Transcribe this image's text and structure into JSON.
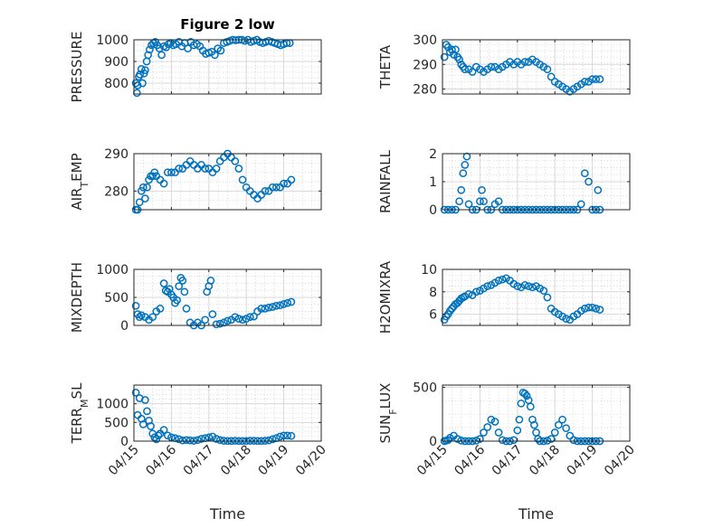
{
  "colors": {
    "marker": "#0072BD",
    "axis": "#262626",
    "grid": "#d9d9d9"
  },
  "chart_data": [
    {
      "type": "scatter",
      "title": "Figure 2 low",
      "ylabel": "PRESSURE",
      "xlabel": "",
      "xlim": [
        0,
        5
      ],
      "ylim": [
        750,
        1000
      ],
      "yticks": [
        800,
        900,
        1000
      ],
      "ytick_labels": [
        "800",
        "900",
        "1000"
      ],
      "xticks": [
        0,
        1,
        2,
        3,
        4,
        5
      ],
      "xtick_labels": [],
      "grid": true,
      "x": [
        0.05,
        0.08,
        0.1,
        0.13,
        0.16,
        0.2,
        0.23,
        0.27,
        0.3,
        0.34,
        0.38,
        0.42,
        0.47,
        0.52,
        0.57,
        0.62,
        0.68,
        0.74,
        0.8,
        0.86,
        0.92,
        0.98,
        1.05,
        1.12,
        1.2,
        1.28,
        1.36,
        1.44,
        1.52,
        1.6,
        1.68,
        1.76,
        1.84,
        1.92,
        2.0,
        2.08,
        2.16,
        2.24,
        2.32,
        2.4,
        2.48,
        2.56,
        2.64,
        2.72,
        2.8,
        2.88,
        2.96,
        3.04,
        3.12,
        3.2,
        3.28,
        3.36,
        3.44,
        3.52,
        3.6,
        3.68,
        3.76,
        3.84,
        3.92,
        4.0,
        4.08,
        4.16
      ],
      "y": [
        800,
        755,
        790,
        830,
        840,
        865,
        800,
        845,
        860,
        900,
        930,
        955,
        975,
        985,
        990,
        975,
        960,
        930,
        970,
        965,
        980,
        985,
        975,
        980,
        990,
        970,
        985,
        960,
        990,
        975,
        980,
        970,
        950,
        935,
        940,
        945,
        930,
        960,
        950,
        985,
        990,
        995,
        1000,
        998,
        1000,
        1000,
        995,
        1000,
        990,
        995,
        1000,
        990,
        985,
        990,
        995,
        990,
        985,
        980,
        975,
        980,
        985,
        985
      ]
    },
    {
      "type": "scatter",
      "title": "",
      "ylabel": "THETA",
      "xlabel": "",
      "xlim": [
        0,
        5
      ],
      "ylim": [
        278,
        300
      ],
      "yticks": [
        280,
        290,
        300
      ],
      "ytick_labels": [
        "280",
        "290",
        "300"
      ],
      "xticks": [
        0,
        1,
        2,
        3,
        4,
        5
      ],
      "xtick_labels": [],
      "grid": true,
      "x": [
        0.05,
        0.1,
        0.15,
        0.2,
        0.25,
        0.3,
        0.35,
        0.4,
        0.45,
        0.5,
        0.55,
        0.6,
        0.7,
        0.8,
        0.9,
        1.0,
        1.1,
        1.2,
        1.3,
        1.4,
        1.5,
        1.6,
        1.7,
        1.8,
        1.9,
        2.0,
        2.1,
        2.2,
        2.3,
        2.4,
        2.5,
        2.6,
        2.7,
        2.8,
        2.9,
        3.0,
        3.1,
        3.2,
        3.3,
        3.4,
        3.5,
        3.6,
        3.7,
        3.8,
        3.9,
        4.0,
        4.1,
        4.2
      ],
      "y": [
        293,
        298,
        297,
        295,
        296,
        294,
        296,
        293,
        292,
        290,
        289,
        288,
        288,
        287,
        289,
        288,
        287,
        288,
        289,
        289,
        288,
        289,
        290,
        291,
        290,
        291,
        290,
        291,
        291,
        292,
        291,
        290,
        289,
        288,
        285,
        283,
        282,
        281,
        280,
        279,
        280,
        281,
        282,
        283,
        283,
        284,
        284,
        284
      ]
    },
    {
      "type": "scatter",
      "title": "",
      "ylabel": "AIR_TEMP",
      "xlabel": "",
      "xlim": [
        0,
        5
      ],
      "ylim": [
        275,
        290
      ],
      "yticks": [
        280,
        290
      ],
      "ytick_labels": [
        "280",
        "290"
      ],
      "xticks": [
        0,
        1,
        2,
        3,
        4,
        5
      ],
      "xtick_labels": [],
      "grid": true,
      "x": [
        0.05,
        0.1,
        0.15,
        0.2,
        0.25,
        0.3,
        0.35,
        0.4,
        0.45,
        0.5,
        0.55,
        0.6,
        0.7,
        0.8,
        0.9,
        1.0,
        1.1,
        1.2,
        1.3,
        1.4,
        1.5,
        1.6,
        1.7,
        1.8,
        1.9,
        2.0,
        2.1,
        2.2,
        2.3,
        2.4,
        2.5,
        2.6,
        2.7,
        2.8,
        2.9,
        3.0,
        3.1,
        3.2,
        3.3,
        3.4,
        3.5,
        3.6,
        3.7,
        3.8,
        3.9,
        4.0,
        4.1,
        4.2
      ],
      "y": [
        275,
        275,
        277,
        280,
        281,
        278,
        281,
        283,
        284,
        284,
        285,
        284,
        283,
        282,
        285,
        285,
        285,
        286,
        286,
        287,
        288,
        287,
        286,
        287,
        286,
        286,
        285,
        286,
        288,
        289,
        290,
        289,
        288,
        286,
        283,
        281,
        280,
        279,
        278,
        279,
        280,
        280,
        281,
        281,
        281,
        282,
        282,
        283
      ]
    },
    {
      "type": "scatter",
      "title": "",
      "ylabel": "RAINFALL",
      "xlabel": "",
      "xlim": [
        0,
        5
      ],
      "ylim": [
        0,
        2
      ],
      "yticks": [
        0,
        1,
        2
      ],
      "ytick_labels": [
        "0",
        "1",
        "2"
      ],
      "xticks": [
        0,
        1,
        2,
        3,
        4,
        5
      ],
      "xtick_labels": [],
      "grid": true,
      "x": [
        0.05,
        0.15,
        0.25,
        0.35,
        0.45,
        0.5,
        0.55,
        0.6,
        0.65,
        0.7,
        0.8,
        0.9,
        1.0,
        1.05,
        1.1,
        1.2,
        1.3,
        1.4,
        1.5,
        1.6,
        1.7,
        1.8,
        1.9,
        2.0,
        2.1,
        2.2,
        2.3,
        2.4,
        2.5,
        2.6,
        2.7,
        2.8,
        2.9,
        3.0,
        3.1,
        3.2,
        3.3,
        3.4,
        3.5,
        3.6,
        3.7,
        3.8,
        3.9,
        4.0,
        4.1,
        4.2,
        4.15
      ],
      "y": [
        0,
        0,
        0,
        0,
        0.3,
        0.7,
        1.3,
        1.6,
        1.9,
        0.2,
        0,
        0,
        0.3,
        0.7,
        0.3,
        0,
        0,
        0.2,
        0.3,
        0,
        0,
        0,
        0,
        0,
        0,
        0,
        0,
        0,
        0,
        0,
        0,
        0,
        0,
        0,
        0,
        0,
        0,
        0,
        0,
        0,
        0.2,
        1.3,
        1.0,
        0,
        0,
        0,
        0.7
      ]
    },
    {
      "type": "scatter",
      "title": "",
      "ylabel": "MIXDEPTH",
      "xlabel": "",
      "xlim": [
        0,
        5
      ],
      "ylim": [
        0,
        1000
      ],
      "yticks": [
        0,
        500,
        1000
      ],
      "ytick_labels": [
        "0",
        "500",
        "1000"
      ],
      "xticks": [
        0,
        1,
        2,
        3,
        4,
        5
      ],
      "xtick_labels": [],
      "grid": true,
      "x": [
        0.05,
        0.1,
        0.15,
        0.2,
        0.3,
        0.4,
        0.5,
        0.6,
        0.7,
        0.8,
        0.85,
        0.9,
        0.95,
        1.0,
        1.05,
        1.1,
        1.15,
        1.2,
        1.25,
        1.3,
        1.35,
        1.4,
        1.5,
        1.6,
        1.7,
        1.8,
        1.9,
        1.95,
        2.0,
        2.05,
        2.1,
        2.2,
        2.3,
        2.4,
        2.5,
        2.6,
        2.7,
        2.8,
        2.9,
        3.0,
        3.1,
        3.2,
        3.3,
        3.4,
        3.5,
        3.6,
        3.7,
        3.8,
        3.9,
        4.0,
        4.1,
        4.2
      ],
      "y": [
        350,
        200,
        150,
        180,
        150,
        100,
        150,
        250,
        300,
        750,
        620,
        600,
        650,
        550,
        500,
        400,
        450,
        700,
        850,
        800,
        600,
        300,
        50,
        0,
        50,
        0,
        100,
        600,
        700,
        800,
        200,
        20,
        30,
        50,
        80,
        100,
        150,
        120,
        100,
        120,
        150,
        160,
        250,
        300,
        300,
        320,
        330,
        350,
        360,
        380,
        400,
        420
      ]
    },
    {
      "type": "scatter",
      "title": "",
      "ylabel": "H2OMIXRA",
      "xlabel": "",
      "xlim": [
        0,
        5
      ],
      "ylim": [
        5,
        10
      ],
      "yticks": [
        6,
        8,
        10
      ],
      "ytick_labels": [
        "6",
        "8",
        "10"
      ],
      "xticks": [
        0,
        1,
        2,
        3,
        4,
        5
      ],
      "xtick_labels": [],
      "grid": true,
      "x": [
        0.05,
        0.1,
        0.15,
        0.2,
        0.25,
        0.3,
        0.35,
        0.4,
        0.45,
        0.5,
        0.55,
        0.6,
        0.7,
        0.8,
        0.9,
        1.0,
        1.1,
        1.2,
        1.3,
        1.4,
        1.5,
        1.6,
        1.7,
        1.8,
        1.9,
        2.0,
        2.1,
        2.2,
        2.3,
        2.4,
        2.5,
        2.6,
        2.7,
        2.8,
        2.9,
        3.0,
        3.1,
        3.2,
        3.3,
        3.4,
        3.5,
        3.6,
        3.7,
        3.8,
        3.9,
        4.0,
        4.1,
        4.2
      ],
      "y": [
        5.5,
        5.8,
        6.0,
        6.3,
        6.5,
        6.7,
        6.9,
        7.0,
        7.2,
        7.4,
        7.5,
        7.6,
        7.8,
        7.7,
        8.0,
        8.1,
        8.3,
        8.5,
        8.6,
        8.8,
        9.0,
        9.1,
        9.2,
        9.0,
        8.7,
        8.5,
        8.4,
        8.6,
        8.5,
        8.4,
        8.5,
        8.3,
        8.1,
        7.5,
        6.5,
        6.2,
        6.0,
        5.8,
        5.6,
        5.5,
        5.8,
        6.0,
        6.3,
        6.5,
        6.6,
        6.6,
        6.5,
        6.4
      ]
    },
    {
      "type": "scatter",
      "title": "",
      "ylabel": "TERR_MSL",
      "xlabel": "Time",
      "xlim": [
        0,
        5
      ],
      "ylim": [
        0,
        1500
      ],
      "yticks": [
        0,
        500,
        1000
      ],
      "ytick_labels": [
        "0",
        "500",
        "1000"
      ],
      "xticks": [
        0,
        1,
        2,
        3,
        4,
        5
      ],
      "xtick_labels": [
        "04/15",
        "04/16",
        "04/17",
        "04/18",
        "04/19",
        "04/20"
      ],
      "grid": true,
      "x": [
        0.05,
        0.1,
        0.15,
        0.2,
        0.25,
        0.3,
        0.35,
        0.4,
        0.45,
        0.5,
        0.55,
        0.6,
        0.65,
        0.7,
        0.8,
        0.9,
        1.0,
        1.1,
        1.2,
        1.3,
        1.4,
        1.5,
        1.6,
        1.7,
        1.8,
        1.9,
        2.0,
        2.1,
        2.2,
        2.3,
        2.4,
        2.5,
        2.6,
        2.7,
        2.8,
        2.9,
        3.0,
        3.1,
        3.2,
        3.3,
        3.4,
        3.5,
        3.6,
        3.7,
        3.8,
        3.9,
        4.0,
        4.1,
        4.2
      ],
      "y": [
        1300,
        700,
        1150,
        600,
        450,
        1100,
        800,
        550,
        400,
        200,
        100,
        50,
        150,
        200,
        300,
        150,
        100,
        80,
        50,
        20,
        30,
        20,
        10,
        30,
        60,
        80,
        100,
        120,
        60,
        30,
        10,
        5,
        5,
        10,
        5,
        5,
        5,
        10,
        10,
        5,
        5,
        10,
        20,
        50,
        80,
        120,
        150,
        150,
        140
      ]
    },
    {
      "type": "scatter",
      "title": "",
      "ylabel": "SUN_FLUX",
      "xlabel": "Time",
      "xlim": [
        0,
        5
      ],
      "ylim": [
        0,
        520
      ],
      "yticks": [
        0,
        500
      ],
      "ytick_labels": [
        "0",
        "500"
      ],
      "xticks": [
        0,
        1,
        2,
        3,
        4,
        5
      ],
      "xtick_labels": [
        "04/15",
        "04/16",
        "04/17",
        "04/18",
        "04/19",
        "04/20"
      ],
      "grid": true,
      "x": [
        0.05,
        0.1,
        0.15,
        0.2,
        0.3,
        0.4,
        0.5,
        0.6,
        0.7,
        0.8,
        0.9,
        1.0,
        1.1,
        1.2,
        1.3,
        1.4,
        1.5,
        1.6,
        1.7,
        1.8,
        1.9,
        2.0,
        2.05,
        2.1,
        2.15,
        2.2,
        2.25,
        2.3,
        2.35,
        2.4,
        2.45,
        2.5,
        2.55,
        2.6,
        2.7,
        2.8,
        2.9,
        3.0,
        3.1,
        3.2,
        3.3,
        3.4,
        3.5,
        3.6,
        3.7,
        3.8,
        3.9,
        4.0,
        4.1,
        4.2
      ],
      "y": [
        0,
        5,
        10,
        30,
        50,
        20,
        5,
        0,
        0,
        0,
        5,
        20,
        80,
        130,
        200,
        180,
        80,
        10,
        0,
        0,
        10,
        100,
        200,
        350,
        450,
        440,
        420,
        380,
        320,
        200,
        150,
        80,
        20,
        0,
        0,
        5,
        20,
        80,
        150,
        200,
        120,
        50,
        10,
        0,
        0,
        0,
        0,
        0,
        0,
        0
      ]
    }
  ]
}
